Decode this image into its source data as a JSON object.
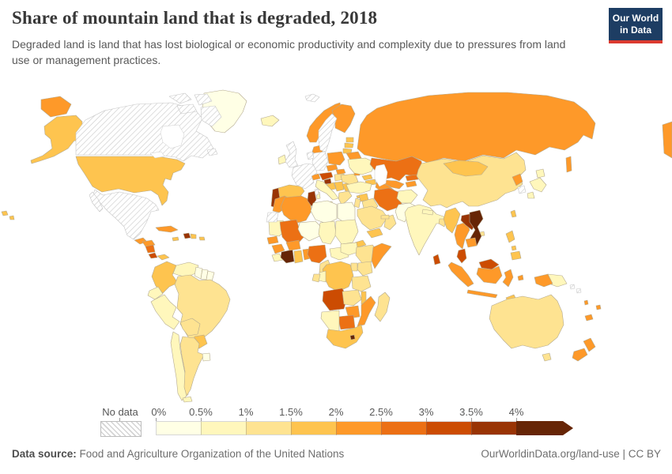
{
  "header": {
    "title": "Share of mountain land that is degraded, 2018",
    "subtitle": "Degraded land is land that has lost biological or economic productivity and complexity due to pressures from land use or management practices.",
    "logo": {
      "line1": "Our World",
      "line2": "in Data",
      "bg_color": "#1d3d63",
      "accent_color": "#dc3a2f"
    }
  },
  "legend": {
    "no_data_label": "No data",
    "tick_labels": [
      "0%",
      "0.5%",
      "1%",
      "1.5%",
      "2%",
      "2.5%",
      "3%",
      "3.5%",
      "4%"
    ]
  },
  "footer": {
    "source_label": "Data source:",
    "source_text": " Food and Agriculture Organization of the United Nations",
    "right_text": "OurWorldinData.org/land-use | CC BY"
  },
  "chart_data": {
    "type": "heatmap",
    "subtype": "world-choropleth",
    "title": "Share of mountain land that is degraded, 2018",
    "unit": "%",
    "legend_bins": [
      {
        "range": "0-0.5%",
        "color": "#ffffe5"
      },
      {
        "range": "0.5-1%",
        "color": "#fff7bc"
      },
      {
        "range": "1-1.5%",
        "color": "#fee391"
      },
      {
        "range": "1.5-2%",
        "color": "#fec44f"
      },
      {
        "range": "2-2.5%",
        "color": "#fe9929"
      },
      {
        "range": "2.5-3%",
        "color": "#ec7014"
      },
      {
        "range": "3-3.5%",
        "color": "#cc4c02"
      },
      {
        "range": "3.5-4%",
        "color": "#993404"
      },
      {
        "range": "4%+",
        "color": "#662506"
      }
    ],
    "no_data_countries": [
      "Canada",
      "Mexico",
      "France",
      "Germany",
      "United Kingdom",
      "Netherlands",
      "Sweden",
      "South Korea",
      "Western Sahara",
      "Svalbard",
      "Solomon Islands"
    ],
    "countries": [
      {
        "name": "United States",
        "value": 1.8
      },
      {
        "name": "Greenland",
        "value": 0.2
      },
      {
        "name": "Guatemala",
        "value": 2.2
      },
      {
        "name": "Honduras",
        "value": 2.2
      },
      {
        "name": "Nicaragua",
        "value": 2.8
      },
      {
        "name": "Costa Rica",
        "value": 3.2
      },
      {
        "name": "Panama",
        "value": 1.8
      },
      {
        "name": "Cuba",
        "value": 2.2
      },
      {
        "name": "Jamaica",
        "value": 1.8
      },
      {
        "name": "Haiti",
        "value": 3.8
      },
      {
        "name": "Dominican Republic",
        "value": 1.8
      },
      {
        "name": "Puerto Rico",
        "value": 1.8
      },
      {
        "name": "Colombia",
        "value": 1.8
      },
      {
        "name": "Venezuela",
        "value": 0.8
      },
      {
        "name": "Guyana",
        "value": 0.2
      },
      {
        "name": "Suriname",
        "value": 0.2
      },
      {
        "name": "French Guiana",
        "value": 0.2
      },
      {
        "name": "Ecuador",
        "value": 0.8
      },
      {
        "name": "Peru",
        "value": 0.8
      },
      {
        "name": "Brazil",
        "value": 1.2
      },
      {
        "name": "Bolivia",
        "value": 1.2
      },
      {
        "name": "Paraguay",
        "value": 1.8
      },
      {
        "name": "Chile",
        "value": 0.8
      },
      {
        "name": "Argentina",
        "value": 1.2
      },
      {
        "name": "Uruguay",
        "value": 0.2
      },
      {
        "name": "Iceland",
        "value": 0.8
      },
      {
        "name": "Ireland",
        "value": 0.8
      },
      {
        "name": "Norway",
        "value": 2.2
      },
      {
        "name": "Finland",
        "value": 2.2
      },
      {
        "name": "Denmark",
        "value": 2.2
      },
      {
        "name": "Estonia",
        "value": 1.8
      },
      {
        "name": "Latvia",
        "value": 1.8
      },
      {
        "name": "Lithuania",
        "value": 1.8
      },
      {
        "name": "Belarus",
        "value": 2.2
      },
      {
        "name": "Poland",
        "value": 2.2
      },
      {
        "name": "Czechia",
        "value": 2.2
      },
      {
        "name": "Slovakia",
        "value": 2.2
      },
      {
        "name": "Hungary",
        "value": 1.2
      },
      {
        "name": "Austria",
        "value": 3.2
      },
      {
        "name": "Switzerland",
        "value": 2.2
      },
      {
        "name": "Slovenia",
        "value": 3.8
      },
      {
        "name": "Croatia",
        "value": 1.8
      },
      {
        "name": "Serbia",
        "value": 1.8
      },
      {
        "name": "Greece",
        "value": 1.2
      },
      {
        "name": "Bulgaria",
        "value": 1.8
      },
      {
        "name": "Romania",
        "value": 1.2
      },
      {
        "name": "Moldova",
        "value": 2.2
      },
      {
        "name": "Ukraine",
        "value": 0.8
      },
      {
        "name": "Italy",
        "value": 0.8
      },
      {
        "name": "Spain",
        "value": 1.8
      },
      {
        "name": "Portugal",
        "value": 3.8
      },
      {
        "name": "Morocco",
        "value": 2.2
      },
      {
        "name": "Algeria",
        "value": 2.2
      },
      {
        "name": "Tunisia",
        "value": 3.8
      },
      {
        "name": "Libya",
        "value": 0.2
      },
      {
        "name": "Egypt",
        "value": 0.2
      },
      {
        "name": "Mauritania",
        "value": 0.8
      },
      {
        "name": "Mali",
        "value": 2.8
      },
      {
        "name": "Niger",
        "value": 0.2
      },
      {
        "name": "Chad",
        "value": 0.8
      },
      {
        "name": "Sudan",
        "value": 0.8
      },
      {
        "name": "Eritrea",
        "value": 1.8
      },
      {
        "name": "Senegal",
        "value": 2.2
      },
      {
        "name": "Guinea",
        "value": 2.2
      },
      {
        "name": "Sierra Leone",
        "value": 0.8
      },
      {
        "name": "Cote d'Ivoire",
        "value": 4.5
      },
      {
        "name": "Ghana",
        "value": 1.8
      },
      {
        "name": "Benin",
        "value": 2.2
      },
      {
        "name": "Burkina Faso",
        "value": 2.2
      },
      {
        "name": "Nigeria",
        "value": 2.8
      },
      {
        "name": "Cameroon",
        "value": 1.2
      },
      {
        "name": "Central African Republic",
        "value": 0.8
      },
      {
        "name": "South Sudan",
        "value": 0.8
      },
      {
        "name": "Ethiopia",
        "value": 1.2
      },
      {
        "name": "Somalia",
        "value": 2.2
      },
      {
        "name": "Kenya",
        "value": 1.2
      },
      {
        "name": "Uganda",
        "value": 1.2
      },
      {
        "name": "Democratic Republic of Congo",
        "value": 1.8
      },
      {
        "name": "Congo",
        "value": 0.8
      },
      {
        "name": "Gabon",
        "value": 1.2
      },
      {
        "name": "Tanzania",
        "value": 1.2
      },
      {
        "name": "Angola",
        "value": 3.2
      },
      {
        "name": "Zambia",
        "value": 1.2
      },
      {
        "name": "Malawi",
        "value": 1.8
      },
      {
        "name": "Mozambique",
        "value": 2.2
      },
      {
        "name": "Zimbabwe",
        "value": 2.2
      },
      {
        "name": "Botswana",
        "value": 2.8
      },
      {
        "name": "Namibia",
        "value": 0.8
      },
      {
        "name": "South Africa",
        "value": 1.8
      },
      {
        "name": "Lesotho",
        "value": 4.5
      },
      {
        "name": "Madagascar",
        "value": 1.2
      },
      {
        "name": "Russia",
        "value": 2.2
      },
      {
        "name": "Kazakhstan",
        "value": 2.8
      },
      {
        "name": "Uzbekistan",
        "value": 2.2
      },
      {
        "name": "Turkmenistan",
        "value": 2.2
      },
      {
        "name": "Kyrgyzstan",
        "value": 2.8
      },
      {
        "name": "Tajikistan",
        "value": 2.2
      },
      {
        "name": "Georgia",
        "value": 1.8
      },
      {
        "name": "Azerbaijan",
        "value": 1.8
      },
      {
        "name": "Turkey",
        "value": 0.8
      },
      {
        "name": "Cyprus",
        "value": 1.8
      },
      {
        "name": "Syria",
        "value": 1.8
      },
      {
        "name": "Jordan",
        "value": 1.2
      },
      {
        "name": "Iraq",
        "value": 1.2
      },
      {
        "name": "Iran",
        "value": 2.8
      },
      {
        "name": "Saudi Arabia",
        "value": 1.2
      },
      {
        "name": "Yemen",
        "value": 1.8
      },
      {
        "name": "Oman",
        "value": 1.2
      },
      {
        "name": "United Arab Emirates",
        "value": 1.2
      },
      {
        "name": "Afghanistan",
        "value": 0.8
      },
      {
        "name": "Pakistan",
        "value": 0.2
      },
      {
        "name": "India",
        "value": 0.8
      },
      {
        "name": "Nepal",
        "value": 0.8
      },
      {
        "name": "Bangladesh",
        "value": 1.2
      },
      {
        "name": "Sri Lanka",
        "value": 3.2
      },
      {
        "name": "China",
        "value": 1.2
      },
      {
        "name": "Mongolia",
        "value": 1.8
      },
      {
        "name": "North Korea",
        "value": 2.2
      },
      {
        "name": "Japan",
        "value": 0.8
      },
      {
        "name": "Taiwan",
        "value": 1.8
      },
      {
        "name": "Myanmar",
        "value": 1.8
      },
      {
        "name": "Thailand",
        "value": 2.2
      },
      {
        "name": "Laos",
        "value": 3.8
      },
      {
        "name": "Vietnam",
        "value": 4.5
      },
      {
        "name": "Cambodia",
        "value": 2.2
      },
      {
        "name": "Malaysia",
        "value": 3.2
      },
      {
        "name": "Indonesia",
        "value": 2.2
      },
      {
        "name": "Philippines",
        "value": 1.8
      },
      {
        "name": "Timor",
        "value": 1.8
      },
      {
        "name": "Papua New Guinea",
        "value": 0.8
      },
      {
        "name": "Australia",
        "value": 1.2
      },
      {
        "name": "New Zealand",
        "value": 2.2
      },
      {
        "name": "Fiji",
        "value": 2.2
      },
      {
        "name": "New Caledonia",
        "value": 2.2
      },
      {
        "name": "Vanuatu",
        "value": 2.2
      }
    ]
  }
}
